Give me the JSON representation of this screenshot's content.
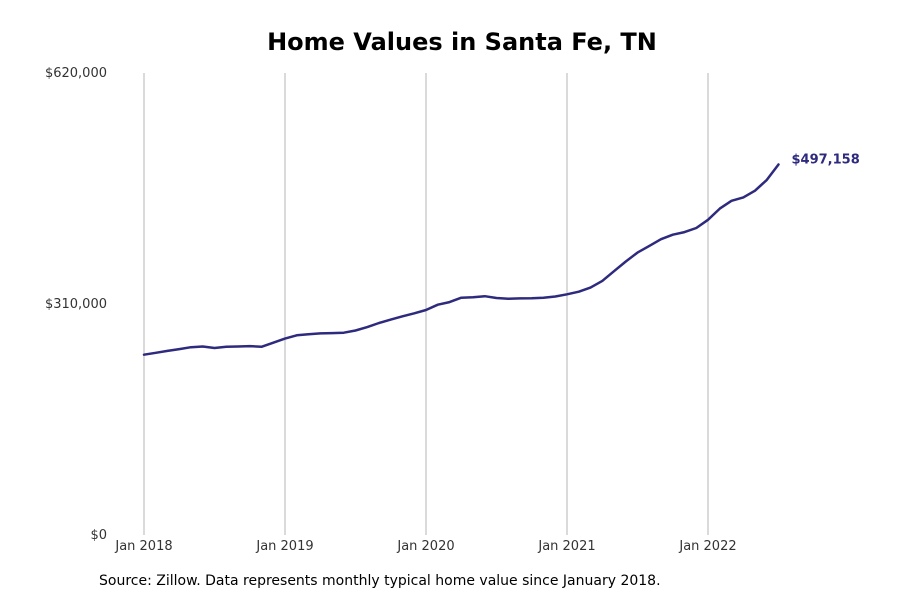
{
  "chart_data": {
    "type": "line",
    "title": "Home Values in Santa Fe, TN",
    "xlabel": "",
    "ylabel": "",
    "ylim": [
      0,
      620000
    ],
    "y_ticks": [
      {
        "value": 0,
        "label": "$0"
      },
      {
        "value": 310000,
        "label": "$310,000"
      },
      {
        "value": 620000,
        "label": "$620,000"
      }
    ],
    "x_ticks": [
      "Jan 2018",
      "Jan 2019",
      "Jan 2020",
      "Jan 2021",
      "Jan 2022"
    ],
    "grid": "vertical",
    "line_color": "#2e2a7e",
    "end_label": "$497,158",
    "series": [
      {
        "dates": [
          "2018-01",
          "2018-02",
          "2018-03",
          "2018-04",
          "2018-05",
          "2018-06",
          "2018-07",
          "2018-08",
          "2018-09",
          "2018-10",
          "2018-11",
          "2018-12",
          "2019-01",
          "2019-02",
          "2019-03",
          "2019-04",
          "2019-05",
          "2019-06",
          "2019-07",
          "2019-08",
          "2019-09",
          "2019-10",
          "2019-11",
          "2019-12",
          "2020-01",
          "2020-02",
          "2020-03",
          "2020-04",
          "2020-05",
          "2020-06",
          "2020-07",
          "2020-08",
          "2020-09",
          "2020-10",
          "2020-11",
          "2020-12",
          "2021-01",
          "2021-02",
          "2021-03",
          "2021-04",
          "2021-05",
          "2021-06",
          "2021-07",
          "2021-08",
          "2021-09",
          "2021-10",
          "2021-11",
          "2021-12",
          "2022-01",
          "2022-02",
          "2022-03",
          "2022-04",
          "2022-05",
          "2022-06",
          "2022-07"
        ],
        "values": [
          242000,
          244500,
          247000,
          249500,
          252000,
          253000,
          251000,
          252500,
          253000,
          253500,
          252500,
          258000,
          263500,
          268000,
          269500,
          270500,
          271000,
          271500,
          274500,
          279000,
          284500,
          289000,
          293500,
          297500,
          302000,
          309000,
          312500,
          318500,
          319000,
          320500,
          318000,
          317000,
          317500,
          317700,
          318500,
          320000,
          323000,
          326500,
          332000,
          341000,
          354000,
          367000,
          379000,
          388000,
          397000,
          403000,
          406500,
          412000,
          423000,
          438000,
          448500,
          453000,
          462000,
          476500,
          497158
        ]
      }
    ]
  },
  "source": "Source: Zillow. Data represents monthly typical home value since January 2018."
}
